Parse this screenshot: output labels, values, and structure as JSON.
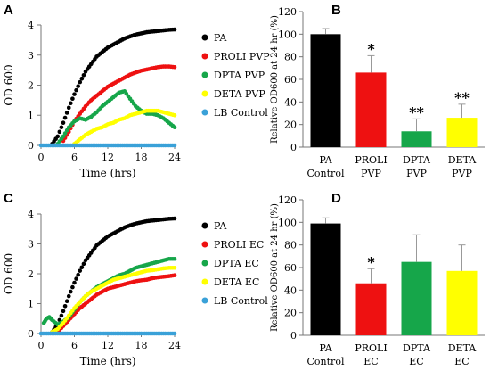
{
  "colors": {
    "PA": "#000000",
    "PROLI": "#ee1111",
    "DPTA": "#16a64a",
    "DETA": "#ffff00",
    "LB": "#3aa1d8"
  },
  "chart_data": [
    {
      "panel": "A",
      "type": "scatter",
      "xlabel": "Time (hrs)",
      "ylabel": "OD 600",
      "xlim": [
        0,
        24
      ],
      "ylim": [
        0,
        4
      ],
      "xticks": [
        "0",
        "6",
        "12",
        "18",
        "24"
      ],
      "yticks": [
        "0",
        "1",
        "2",
        "3",
        "4"
      ],
      "legend_position": "right",
      "series": [
        {
          "name": "PA",
          "color": "PA",
          "x": [
            2,
            3,
            4,
            5,
            6,
            7,
            8,
            9,
            10,
            11,
            12,
            13,
            14,
            15,
            16,
            17,
            18,
            19,
            20,
            21,
            22,
            23,
            24
          ],
          "y": [
            0.05,
            0.3,
            0.75,
            1.25,
            1.7,
            2.1,
            2.45,
            2.7,
            2.95,
            3.1,
            3.25,
            3.35,
            3.45,
            3.55,
            3.62,
            3.68,
            3.72,
            3.76,
            3.78,
            3.8,
            3.82,
            3.84,
            3.85
          ]
        },
        {
          "name": "PROLI PVP",
          "color": "PROLI",
          "x": [
            4,
            5,
            6,
            7,
            8,
            9,
            10,
            11,
            12,
            13,
            14,
            15,
            16,
            17,
            18,
            19,
            20,
            21,
            22,
            23,
            24
          ],
          "y": [
            0.15,
            0.45,
            0.8,
            1.05,
            1.3,
            1.5,
            1.65,
            1.8,
            1.95,
            2.05,
            2.15,
            2.25,
            2.35,
            2.42,
            2.48,
            2.52,
            2.56,
            2.6,
            2.62,
            2.62,
            2.6
          ]
        },
        {
          "name": "DPTA PVP",
          "color": "DPTA",
          "x": [
            3,
            4,
            5,
            6,
            7,
            8,
            9,
            10,
            11,
            12,
            13,
            14,
            15,
            16,
            17,
            18,
            19,
            20,
            21,
            22,
            23,
            24
          ],
          "y": [
            0.05,
            0.3,
            0.6,
            0.8,
            0.9,
            0.85,
            0.95,
            1.1,
            1.3,
            1.45,
            1.6,
            1.75,
            1.8,
            1.55,
            1.3,
            1.15,
            1.05,
            1.05,
            1.0,
            0.9,
            0.75,
            0.6
          ]
        },
        {
          "name": "DETA PVP",
          "color": "DETA",
          "x": [
            6,
            7,
            8,
            9,
            10,
            11,
            12,
            13,
            14,
            15,
            16,
            17,
            18,
            19,
            20,
            21,
            22,
            23,
            24
          ],
          "y": [
            0.05,
            0.2,
            0.35,
            0.45,
            0.55,
            0.6,
            0.7,
            0.75,
            0.85,
            0.9,
            1.0,
            1.05,
            1.1,
            1.15,
            1.15,
            1.15,
            1.1,
            1.05,
            1.0
          ]
        },
        {
          "name": "LB Control",
          "color": "LB",
          "x": [
            0,
            1,
            2,
            3,
            4,
            5,
            6,
            7,
            8,
            9,
            10,
            11,
            12,
            13,
            14,
            15,
            16,
            17,
            18,
            19,
            20,
            21,
            22,
            23,
            24
          ],
          "y": [
            0,
            0,
            0,
            0,
            0,
            0,
            0,
            0,
            0,
            0,
            0,
            0,
            0,
            0,
            0,
            0,
            0,
            0,
            0,
            0,
            0,
            0,
            0,
            0,
            0
          ]
        }
      ]
    },
    {
      "panel": "B",
      "type": "bar",
      "xlabel": "",
      "ylabel": "Relative OD600 at 24 hr (%)",
      "ylim": [
        0,
        120
      ],
      "yticks": [
        "0",
        "20",
        "40",
        "60",
        "80",
        "100",
        "120"
      ],
      "categories": [
        [
          "PA",
          "Control"
        ],
        [
          "PROLI",
          "PVP"
        ],
        [
          "DPTA",
          "PVP"
        ],
        [
          "DETA",
          "PVP"
        ]
      ],
      "colors": [
        "PA",
        "PROLI",
        "DPTA",
        "DETA"
      ],
      "values": [
        100,
        66,
        14,
        26
      ],
      "errors": [
        5,
        15,
        11,
        12
      ],
      "annotations": [
        "",
        "*",
        "**",
        "**"
      ]
    },
    {
      "panel": "C",
      "type": "scatter",
      "xlabel": "Time (hrs)",
      "ylabel": "OD 600",
      "xlim": [
        0,
        24
      ],
      "ylim": [
        0,
        4
      ],
      "xticks": [
        "0",
        "6",
        "12",
        "18",
        "24"
      ],
      "yticks": [
        "0",
        "1",
        "2",
        "3",
        "4"
      ],
      "legend_position": "right",
      "series": [
        {
          "name": "PA",
          "color": "PA",
          "x": [
            2,
            3,
            4,
            5,
            6,
            7,
            8,
            9,
            10,
            11,
            12,
            13,
            14,
            15,
            16,
            17,
            18,
            19,
            20,
            21,
            22,
            23,
            24
          ],
          "y": [
            0.05,
            0.3,
            0.75,
            1.25,
            1.7,
            2.1,
            2.45,
            2.7,
            2.95,
            3.1,
            3.25,
            3.35,
            3.45,
            3.55,
            3.62,
            3.68,
            3.72,
            3.76,
            3.78,
            3.8,
            3.82,
            3.84,
            3.85
          ]
        },
        {
          "name": "PROLI EC",
          "color": "PROLI",
          "x": [
            3,
            4,
            5,
            6,
            7,
            8,
            9,
            10,
            11,
            12,
            13,
            14,
            15,
            16,
            17,
            18,
            19,
            20,
            21,
            22,
            23,
            24
          ],
          "y": [
            0.05,
            0.25,
            0.45,
            0.65,
            0.85,
            1.0,
            1.15,
            1.3,
            1.4,
            1.5,
            1.55,
            1.6,
            1.65,
            1.7,
            1.75,
            1.78,
            1.8,
            1.85,
            1.88,
            1.9,
            1.92,
            1.95
          ]
        },
        {
          "name": "DPTA EC",
          "color": "DPTA",
          "x": [
            0.5,
            1,
            1.5,
            2,
            3,
            4,
            5,
            6,
            7,
            8,
            9,
            10,
            11,
            12,
            13,
            14,
            15,
            16,
            17,
            18,
            19,
            20,
            21,
            22,
            23,
            24
          ],
          "y": [
            0.35,
            0.5,
            0.55,
            0.45,
            0.3,
            0.4,
            0.55,
            0.8,
            1.05,
            1.25,
            1.4,
            1.55,
            1.65,
            1.75,
            1.85,
            1.95,
            2.0,
            2.1,
            2.2,
            2.25,
            2.3,
            2.35,
            2.4,
            2.45,
            2.5,
            2.5
          ]
        },
        {
          "name": "DETA EC",
          "color": "DETA",
          "x": [
            2,
            3,
            4,
            5,
            6,
            7,
            8,
            9,
            10,
            11,
            12,
            13,
            14,
            15,
            16,
            17,
            18,
            19,
            20,
            21,
            22,
            23,
            24
          ],
          "y": [
            0.05,
            0.15,
            0.35,
            0.6,
            0.85,
            1.05,
            1.25,
            1.4,
            1.5,
            1.6,
            1.7,
            1.8,
            1.85,
            1.9,
            1.95,
            2.0,
            2.05,
            2.1,
            2.12,
            2.15,
            2.18,
            2.2,
            2.2
          ]
        },
        {
          "name": "LB Control",
          "color": "LB",
          "x": [
            0,
            1,
            2,
            3,
            4,
            5,
            6,
            7,
            8,
            9,
            10,
            11,
            12,
            13,
            14,
            15,
            16,
            17,
            18,
            19,
            20,
            21,
            22,
            23,
            24
          ],
          "y": [
            0,
            0,
            0,
            0,
            0,
            0,
            0,
            0,
            0,
            0,
            0,
            0,
            0,
            0,
            0,
            0,
            0,
            0,
            0,
            0,
            0,
            0,
            0,
            0,
            0
          ]
        }
      ]
    },
    {
      "panel": "D",
      "type": "bar",
      "xlabel": "",
      "ylabel": "Relative OD600 at 24 hr (%)",
      "ylim": [
        0,
        120
      ],
      "yticks": [
        "0",
        "20",
        "40",
        "60",
        "80",
        "100",
        "120"
      ],
      "categories": [
        [
          "PA",
          "Control"
        ],
        [
          "PROLI",
          "EC"
        ],
        [
          "DPTA",
          "EC"
        ],
        [
          "DETA",
          "EC"
        ]
      ],
      "colors": [
        "PA",
        "PROLI",
        "DPTA",
        "DETA"
      ],
      "values": [
        99,
        46,
        65,
        57
      ],
      "errors": [
        5,
        13,
        24,
        23
      ],
      "annotations": [
        "",
        "*",
        "",
        ""
      ]
    }
  ]
}
